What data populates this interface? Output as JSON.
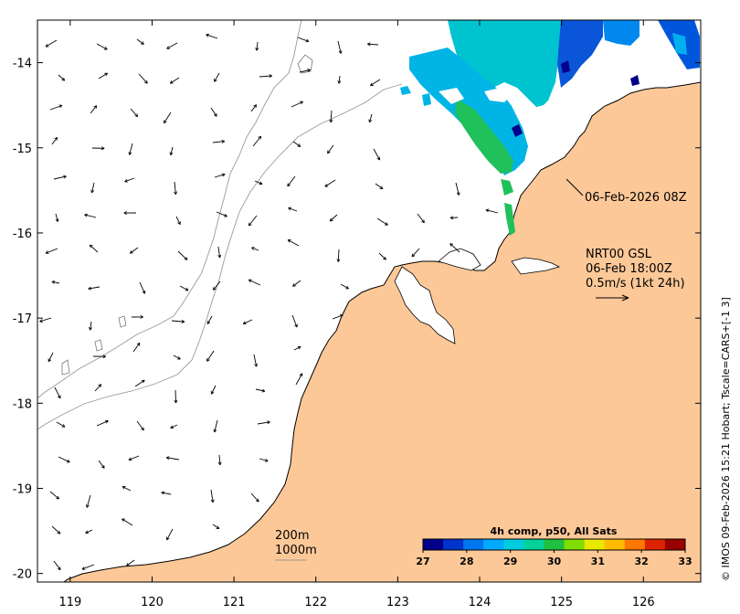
{
  "map": {
    "lon_ticks": [
      "119",
      "120",
      "121",
      "122",
      "123",
      "124",
      "125",
      "126"
    ],
    "lat_ticks": [
      "-14",
      "-15",
      "-16",
      "-17",
      "-18",
      "-19",
      "-20"
    ],
    "lon_range": [
      118.6,
      126.7
    ],
    "lat_range": [
      -20.1,
      -13.5
    ],
    "land_color": "#fdc898",
    "coastline_color": "#000000",
    "bathymetry_color": "#9a9a9a"
  },
  "annotations": {
    "pass_label": "06-Feb-2026 08Z",
    "product_line1": "NRT00 GSL",
    "product_line2": "06-Feb 18:00Z",
    "product_line3": "0.5m/s (1kt 24h)",
    "contour_200": "200m",
    "contour_1000": "1000m",
    "credit": "© IMOS 09-Feb-2026 15:21 Hobart; Tscale=CARS+[-1 3]"
  },
  "colorbar": {
    "title": "4h comp, p50, All Sats",
    "ticks": [
      "27",
      "28",
      "29",
      "30",
      "31",
      "32",
      "33"
    ],
    "range": [
      27,
      33
    ],
    "colors": [
      "#00008b",
      "#0033cc",
      "#0077ee",
      "#00aaff",
      "#00ccdd",
      "#00d29a",
      "#20c040",
      "#80dd00",
      "#e8e800",
      "#ffbb00",
      "#ff7700",
      "#dd2200",
      "#990000"
    ]
  }
}
